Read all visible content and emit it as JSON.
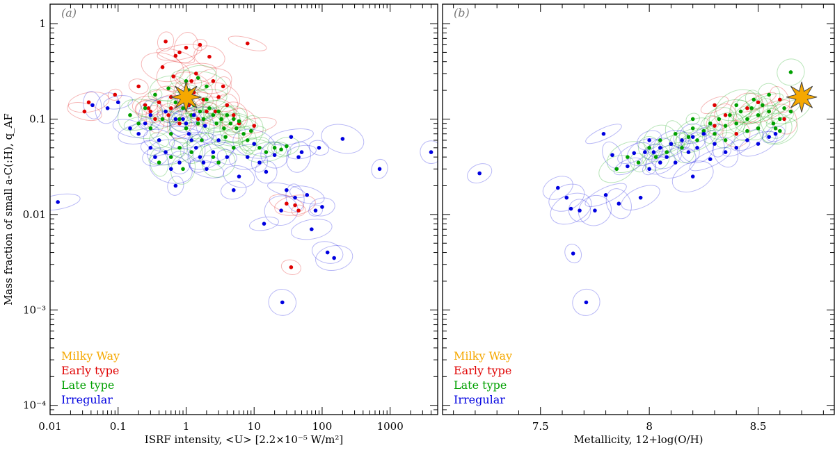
{
  "chart_data": [
    {
      "panel_label": "(a)",
      "type": "scatter",
      "x_scale": "log",
      "y_scale": "log",
      "xlim": [
        0.01,
        5000
      ],
      "ylim": [
        8e-05,
        1.6
      ],
      "xlabel": "ISRF intensity, <U> [2.2×10⁻⁵ W/m²]",
      "ylabel": "Mass fraction of small a-C(:H), q_AF",
      "x_ticks": [
        "0.01",
        "0.1",
        "1",
        "10",
        "100",
        "1000"
      ],
      "x_tick_values": [
        0.01,
        0.1,
        1,
        10,
        100,
        1000
      ],
      "y_ticks": [
        "1",
        "0.1",
        "0.01",
        "10⁻³",
        "10⁻⁴"
      ],
      "y_tick_values": [
        1,
        0.1,
        0.01,
        0.001,
        0.0001
      ],
      "legend": [
        "Milky Way",
        "Early type",
        "Late type",
        "Irregular"
      ],
      "legend_position": "bottom-left",
      "series": [
        {
          "name": "Milky Way",
          "color": "#f5a800",
          "marker": "star",
          "points": [
            [
              1.0,
              0.17
            ]
          ]
        },
        {
          "name": "Early type",
          "color": "#e00000",
          "marker": "dot",
          "points": [
            [
              0.032,
              0.12
            ],
            [
              0.037,
              0.15
            ],
            [
              0.09,
              0.18
            ],
            [
              0.2,
              0.22
            ],
            [
              0.25,
              0.14
            ],
            [
              0.3,
              0.12
            ],
            [
              0.4,
              0.15
            ],
            [
              0.45,
              0.35
            ],
            [
              0.5,
              0.65
            ],
            [
              0.55,
              0.11
            ],
            [
              0.6,
              0.13
            ],
            [
              0.65,
              0.28
            ],
            [
              0.7,
              0.46
            ],
            [
              0.8,
              0.5
            ],
            [
              0.9,
              0.18
            ],
            [
              1.0,
              0.56
            ],
            [
              1.1,
              0.14
            ],
            [
              1.2,
              0.25
            ],
            [
              1.4,
              0.3
            ],
            [
              1.6,
              0.6
            ],
            [
              1.8,
              0.16
            ],
            [
              2.0,
              0.12
            ],
            [
              2.2,
              0.45
            ],
            [
              2.5,
              0.25
            ],
            [
              3.0,
              0.17
            ],
            [
              3.5,
              0.22
            ],
            [
              4.0,
              0.14
            ],
            [
              5.0,
              0.11
            ],
            [
              6.0,
              0.09
            ],
            [
              8.0,
              0.62
            ],
            [
              10,
              0.085
            ],
            [
              0.35,
              0.1
            ],
            [
              0.8,
              0.09
            ],
            [
              1.5,
              0.1
            ],
            [
              30,
              0.013
            ],
            [
              40,
              0.0125
            ],
            [
              45,
              0.011
            ],
            [
              35,
              0.0028
            ],
            [
              0.28,
              0.13
            ],
            [
              0.6,
              0.17
            ],
            [
              1.3,
              0.19
            ],
            [
              2.7,
              0.12
            ]
          ]
        },
        {
          "name": "Late type",
          "color": "#00a000",
          "marker": "dot",
          "points": [
            [
              0.15,
              0.11
            ],
            [
              0.2,
              0.09
            ],
            [
              0.25,
              0.13
            ],
            [
              0.3,
              0.08
            ],
            [
              0.35,
              0.18
            ],
            [
              0.4,
              0.06
            ],
            [
              0.45,
              0.1
            ],
            [
              0.5,
              0.12
            ],
            [
              0.55,
              0.21
            ],
            [
              0.6,
              0.07
            ],
            [
              0.7,
              0.15
            ],
            [
              0.8,
              0.1
            ],
            [
              0.9,
              0.13
            ],
            [
              1.0,
              0.08
            ],
            [
              1.1,
              0.2
            ],
            [
              1.2,
              0.11
            ],
            [
              1.3,
              0.14
            ],
            [
              1.5,
              0.09
            ],
            [
              1.6,
              0.12
            ],
            [
              1.8,
              0.1
            ],
            [
              2.0,
              0.16
            ],
            [
              2.2,
              0.13
            ],
            [
              2.5,
              0.11
            ],
            [
              2.8,
              0.09
            ],
            [
              3.0,
              0.12
            ],
            [
              3.3,
              0.1
            ],
            [
              3.6,
              0.08
            ],
            [
              4.0,
              0.11
            ],
            [
              4.5,
              0.09
            ],
            [
              5.0,
              0.1
            ],
            [
              5.5,
              0.08
            ],
            [
              6.0,
              0.095
            ],
            [
              7.0,
              0.07
            ],
            [
              8.0,
              0.06
            ],
            [
              9.0,
              0.075
            ],
            [
              10,
              0.055
            ],
            [
              12,
              0.05
            ],
            [
              15,
              0.045
            ],
            [
              20,
              0.05
            ],
            [
              25,
              0.048
            ],
            [
              30,
              0.052
            ],
            [
              1.0,
              0.25
            ],
            [
              1.5,
              0.27
            ],
            [
              2.0,
              0.22
            ],
            [
              0.8,
              0.05
            ],
            [
              1.2,
              0.045
            ],
            [
              2.5,
              0.04
            ],
            [
              3.0,
              0.035
            ],
            [
              5.0,
              0.05
            ],
            [
              0.6,
              0.04
            ],
            [
              0.4,
              0.035
            ],
            [
              0.9,
              0.03
            ],
            [
              1.7,
              0.06
            ],
            [
              3.8,
              0.065
            ]
          ]
        },
        {
          "name": "Irregular",
          "color": "#0000e0",
          "marker": "dot",
          "points": [
            [
              0.013,
              0.0135
            ],
            [
              0.042,
              0.14
            ],
            [
              0.07,
              0.13
            ],
            [
              0.1,
              0.15
            ],
            [
              0.15,
              0.08
            ],
            [
              0.2,
              0.07
            ],
            [
              0.25,
              0.09
            ],
            [
              0.3,
              0.05
            ],
            [
              0.35,
              0.04
            ],
            [
              0.4,
              0.06
            ],
            [
              0.5,
              0.045
            ],
            [
              0.6,
              0.03
            ],
            [
              0.7,
              0.02
            ],
            [
              0.8,
              0.035
            ],
            [
              0.9,
              0.1
            ],
            [
              1.0,
              0.09
            ],
            [
              1.1,
              0.07
            ],
            [
              1.2,
              0.06
            ],
            [
              1.4,
              0.05
            ],
            [
              1.6,
              0.04
            ],
            [
              1.8,
              0.035
            ],
            [
              2.0,
              0.03
            ],
            [
              2.5,
              0.045
            ],
            [
              3.0,
              0.06
            ],
            [
              4.0,
              0.04
            ],
            [
              5.0,
              0.018
            ],
            [
              6.0,
              0.025
            ],
            [
              8.0,
              0.04
            ],
            [
              10,
              0.055
            ],
            [
              12,
              0.035
            ],
            [
              15,
              0.028
            ],
            [
              20,
              0.042
            ],
            [
              25,
              0.011
            ],
            [
              30,
              0.018
            ],
            [
              35,
              0.065
            ],
            [
              40,
              0.015
            ],
            [
              45,
              0.04
            ],
            [
              50,
              0.045
            ],
            [
              60,
              0.016
            ],
            [
              70,
              0.007
            ],
            [
              80,
              0.011
            ],
            [
              90,
              0.05
            ],
            [
              100,
              0.012
            ],
            [
              120,
              0.004
            ],
            [
              150,
              0.0035
            ],
            [
              200,
              0.062
            ],
            [
              700,
              0.03
            ],
            [
              4000,
              0.045
            ],
            [
              26,
              0.0012
            ],
            [
              0.5,
              0.12
            ],
            [
              0.7,
              0.1
            ],
            [
              1.3,
              0.11
            ],
            [
              1.9,
              0.085
            ],
            [
              0.3,
              0.11
            ],
            [
              14,
              0.008
            ]
          ]
        }
      ]
    },
    {
      "panel_label": "(b)",
      "type": "scatter",
      "x_scale": "linear",
      "y_scale": "log",
      "xlim": [
        7.05,
        8.85
      ],
      "ylim": [
        8e-05,
        1.6
      ],
      "xlabel": "Metallicity, 12+log(O/H)",
      "x_ticks": [
        "7.5",
        "8",
        "8.5"
      ],
      "x_tick_values": [
        7.5,
        8.0,
        8.5
      ],
      "legend": [
        "Milky Way",
        "Early type",
        "Late type",
        "Irregular"
      ],
      "legend_position": "bottom-left",
      "series": [
        {
          "name": "Milky Way",
          "color": "#f5a800",
          "marker": "star",
          "points": [
            [
              8.7,
              0.17
            ]
          ]
        },
        {
          "name": "Early type",
          "color": "#e00000",
          "marker": "dot",
          "points": [
            [
              8.3,
              0.085
            ],
            [
              8.35,
              0.11
            ],
            [
              8.4,
              0.07
            ],
            [
              8.45,
              0.13
            ],
            [
              8.5,
              0.15
            ],
            [
              8.55,
              0.12
            ],
            [
              8.6,
              0.16
            ],
            [
              8.62,
              0.1
            ],
            [
              8.3,
              0.14
            ]
          ]
        },
        {
          "name": "Late type",
          "color": "#00a000",
          "marker": "dot",
          "points": [
            [
              7.85,
              0.03
            ],
            [
              7.9,
              0.04
            ],
            [
              7.95,
              0.035
            ],
            [
              8.0,
              0.05
            ],
            [
              8.03,
              0.04
            ],
            [
              8.05,
              0.06
            ],
            [
              8.08,
              0.045
            ],
            [
              8.1,
              0.055
            ],
            [
              8.12,
              0.07
            ],
            [
              8.15,
              0.05
            ],
            [
              8.18,
              0.065
            ],
            [
              8.2,
              0.08
            ],
            [
              8.22,
              0.06
            ],
            [
              8.25,
              0.075
            ],
            [
              8.28,
              0.09
            ],
            [
              8.3,
              0.07
            ],
            [
              8.32,
              0.1
            ],
            [
              8.35,
              0.085
            ],
            [
              8.37,
              0.11
            ],
            [
              8.4,
              0.09
            ],
            [
              8.42,
              0.12
            ],
            [
              8.45,
              0.1
            ],
            [
              8.47,
              0.13
            ],
            [
              8.5,
              0.11
            ],
            [
              8.52,
              0.14
            ],
            [
              8.55,
              0.12
            ],
            [
              8.57,
              0.09
            ],
            [
              8.6,
              0.1
            ],
            [
              8.62,
              0.13
            ],
            [
              8.65,
              0.12
            ],
            [
              8.2,
              0.1
            ],
            [
              8.35,
              0.06
            ],
            [
              8.45,
              0.075
            ],
            [
              8.5,
              0.08
            ],
            [
              8.6,
              0.075
            ],
            [
              8.4,
              0.14
            ],
            [
              8.48,
              0.16
            ],
            [
              8.55,
              0.18
            ],
            [
              8.65,
              0.31
            ],
            [
              8.58,
              0.08
            ]
          ]
        },
        {
          "name": "Irregular",
          "color": "#0000e0",
          "marker": "dot",
          "points": [
            [
              7.22,
              0.027
            ],
            [
              7.58,
              0.019
            ],
            [
              7.62,
              0.015
            ],
            [
              7.64,
              0.0115
            ],
            [
              7.65,
              0.0039
            ],
            [
              7.68,
              0.011
            ],
            [
              7.71,
              0.0012
            ],
            [
              7.75,
              0.011
            ],
            [
              7.79,
              0.07
            ],
            [
              7.8,
              0.016
            ],
            [
              7.83,
              0.042
            ],
            [
              7.86,
              0.013
            ],
            [
              7.9,
              0.032
            ],
            [
              7.93,
              0.044
            ],
            [
              7.96,
              0.015
            ],
            [
              8.0,
              0.03
            ],
            [
              8.02,
              0.045
            ],
            [
              8.05,
              0.05
            ],
            [
              8.08,
              0.04
            ],
            [
              8.1,
              0.055
            ],
            [
              8.12,
              0.035
            ],
            [
              8.15,
              0.06
            ],
            [
              8.18,
              0.045
            ],
            [
              8.2,
              0.065
            ],
            [
              8.22,
              0.05
            ],
            [
              8.25,
              0.07
            ],
            [
              8.28,
              0.038
            ],
            [
              8.3,
              0.055
            ],
            [
              8.35,
              0.045
            ],
            [
              8.4,
              0.05
            ],
            [
              8.45,
              0.06
            ],
            [
              8.5,
              0.055
            ],
            [
              8.55,
              0.065
            ],
            [
              8.58,
              0.07
            ],
            [
              8.0,
              0.06
            ],
            [
              8.05,
              0.035
            ],
            [
              7.98,
              0.045
            ],
            [
              8.2,
              0.025
            ]
          ]
        }
      ]
    }
  ]
}
